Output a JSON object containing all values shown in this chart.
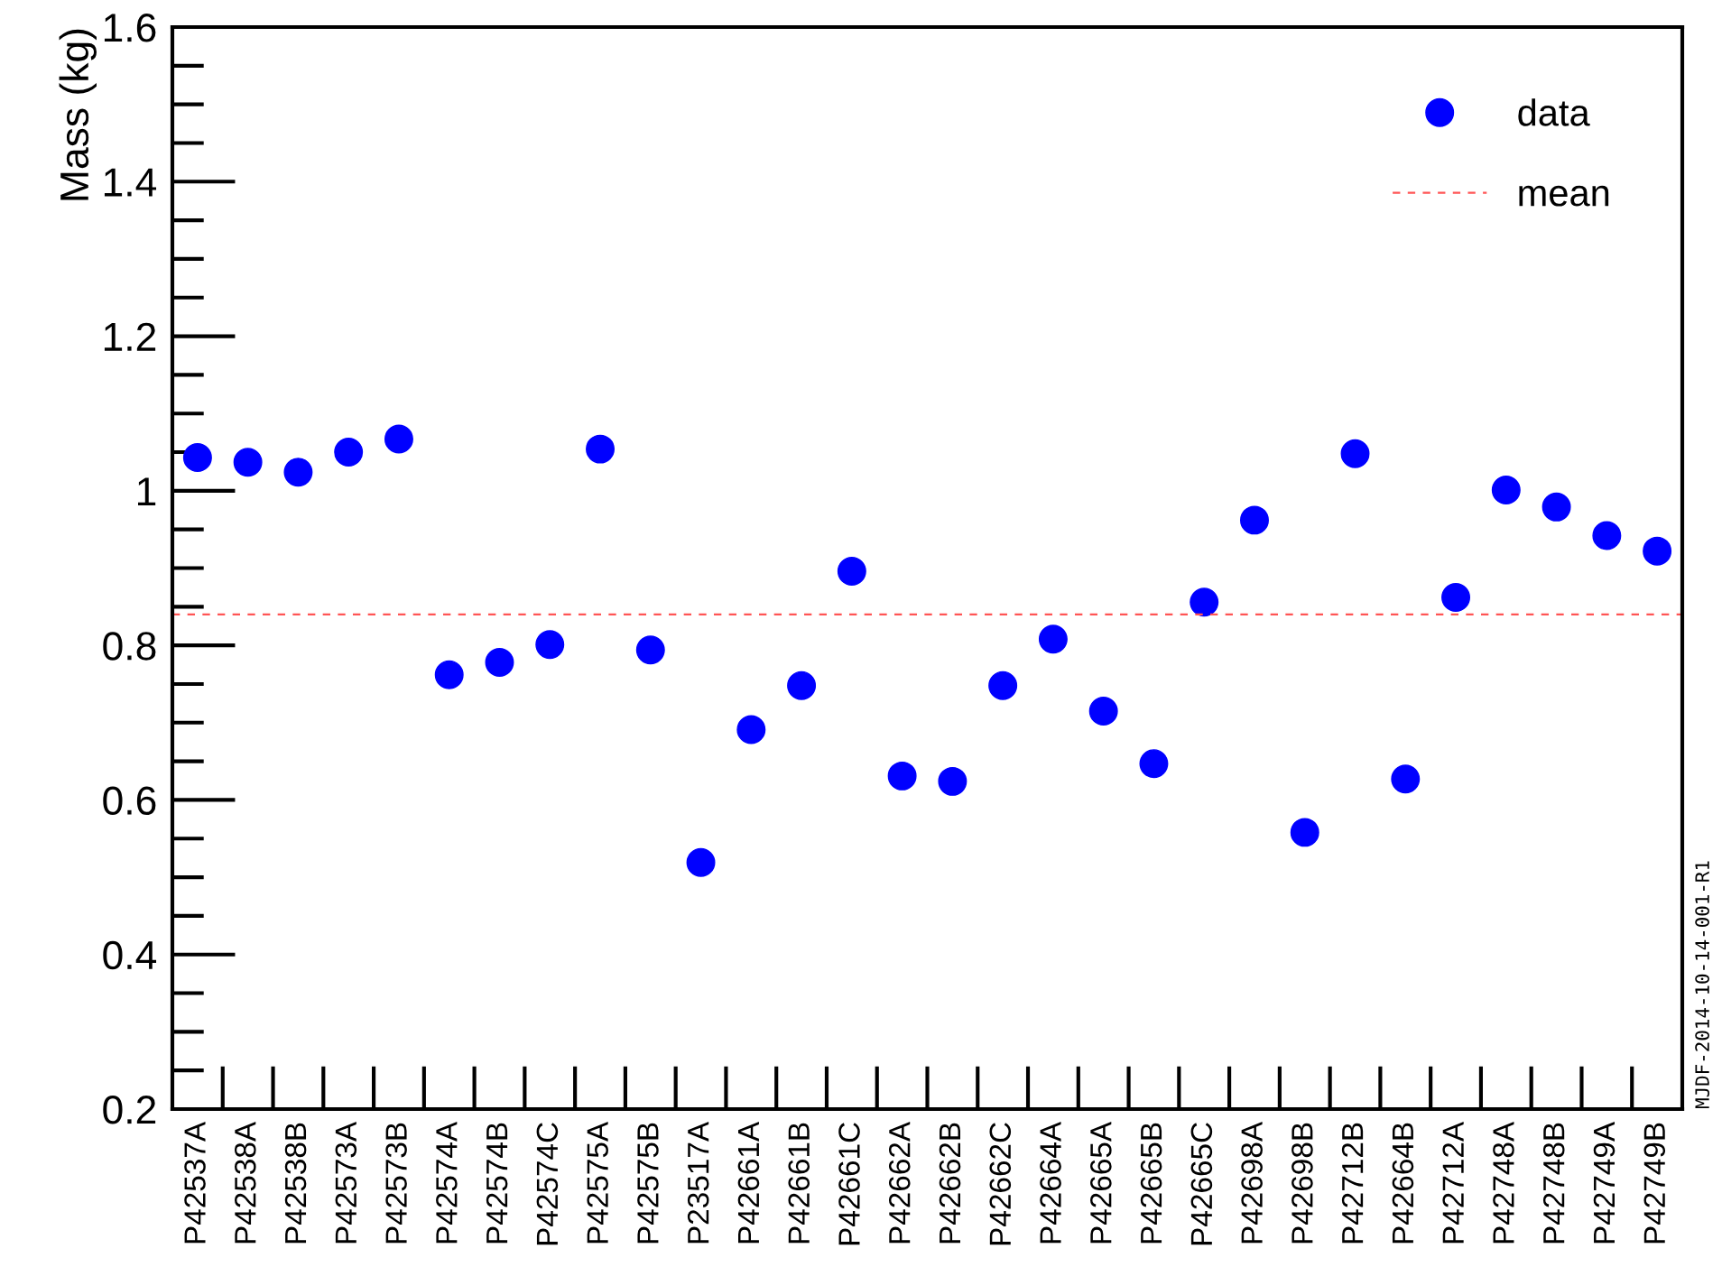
{
  "chart_data": {
    "type": "scatter",
    "ylabel": "Mass (kg)",
    "categories": [
      "P42537A",
      "P42538A",
      "P42538B",
      "P42573A",
      "P42573B",
      "P42574A",
      "P42574B",
      "P42574C",
      "P42575A",
      "P42575B",
      "P23517A",
      "P42661A",
      "P42661B",
      "P42661C",
      "P42662A",
      "P42662B",
      "P42662C",
      "P42664A",
      "P42665A",
      "P42665B",
      "P42665C",
      "P42698A",
      "P42698B",
      "P42712B",
      "P42664B",
      "P42712A",
      "P42748A",
      "P42748B",
      "P42749A",
      "P42749B"
    ],
    "series": [
      {
        "name": "data",
        "color": "#0000ff",
        "values": [
          1.043,
          1.037,
          1.024,
          1.05,
          1.067,
          0.762,
          0.778,
          0.801,
          1.054,
          0.794,
          0.519,
          0.691,
          0.748,
          0.896,
          0.631,
          0.624,
          0.748,
          0.808,
          0.715,
          0.647,
          0.856,
          0.962,
          0.558,
          1.048,
          0.627,
          0.862,
          1.001,
          0.979,
          0.942,
          0.922
        ]
      }
    ],
    "ref_lines": [
      {
        "axis": "y",
        "value": 0.84,
        "label": "mean",
        "color": "#ff5555",
        "line_style": "dashed"
      }
    ],
    "ylim": [
      0.2,
      1.6
    ],
    "yticks": [
      0.2,
      0.4,
      0.6,
      0.8,
      {
        "value": 1.0,
        "label": "1"
      },
      1.2,
      1.4,
      1.6
    ],
    "marker": "circle",
    "grid": false,
    "legend": "top right",
    "annotations": [
      "MJDF-2014-10-14-001-R1"
    ]
  }
}
